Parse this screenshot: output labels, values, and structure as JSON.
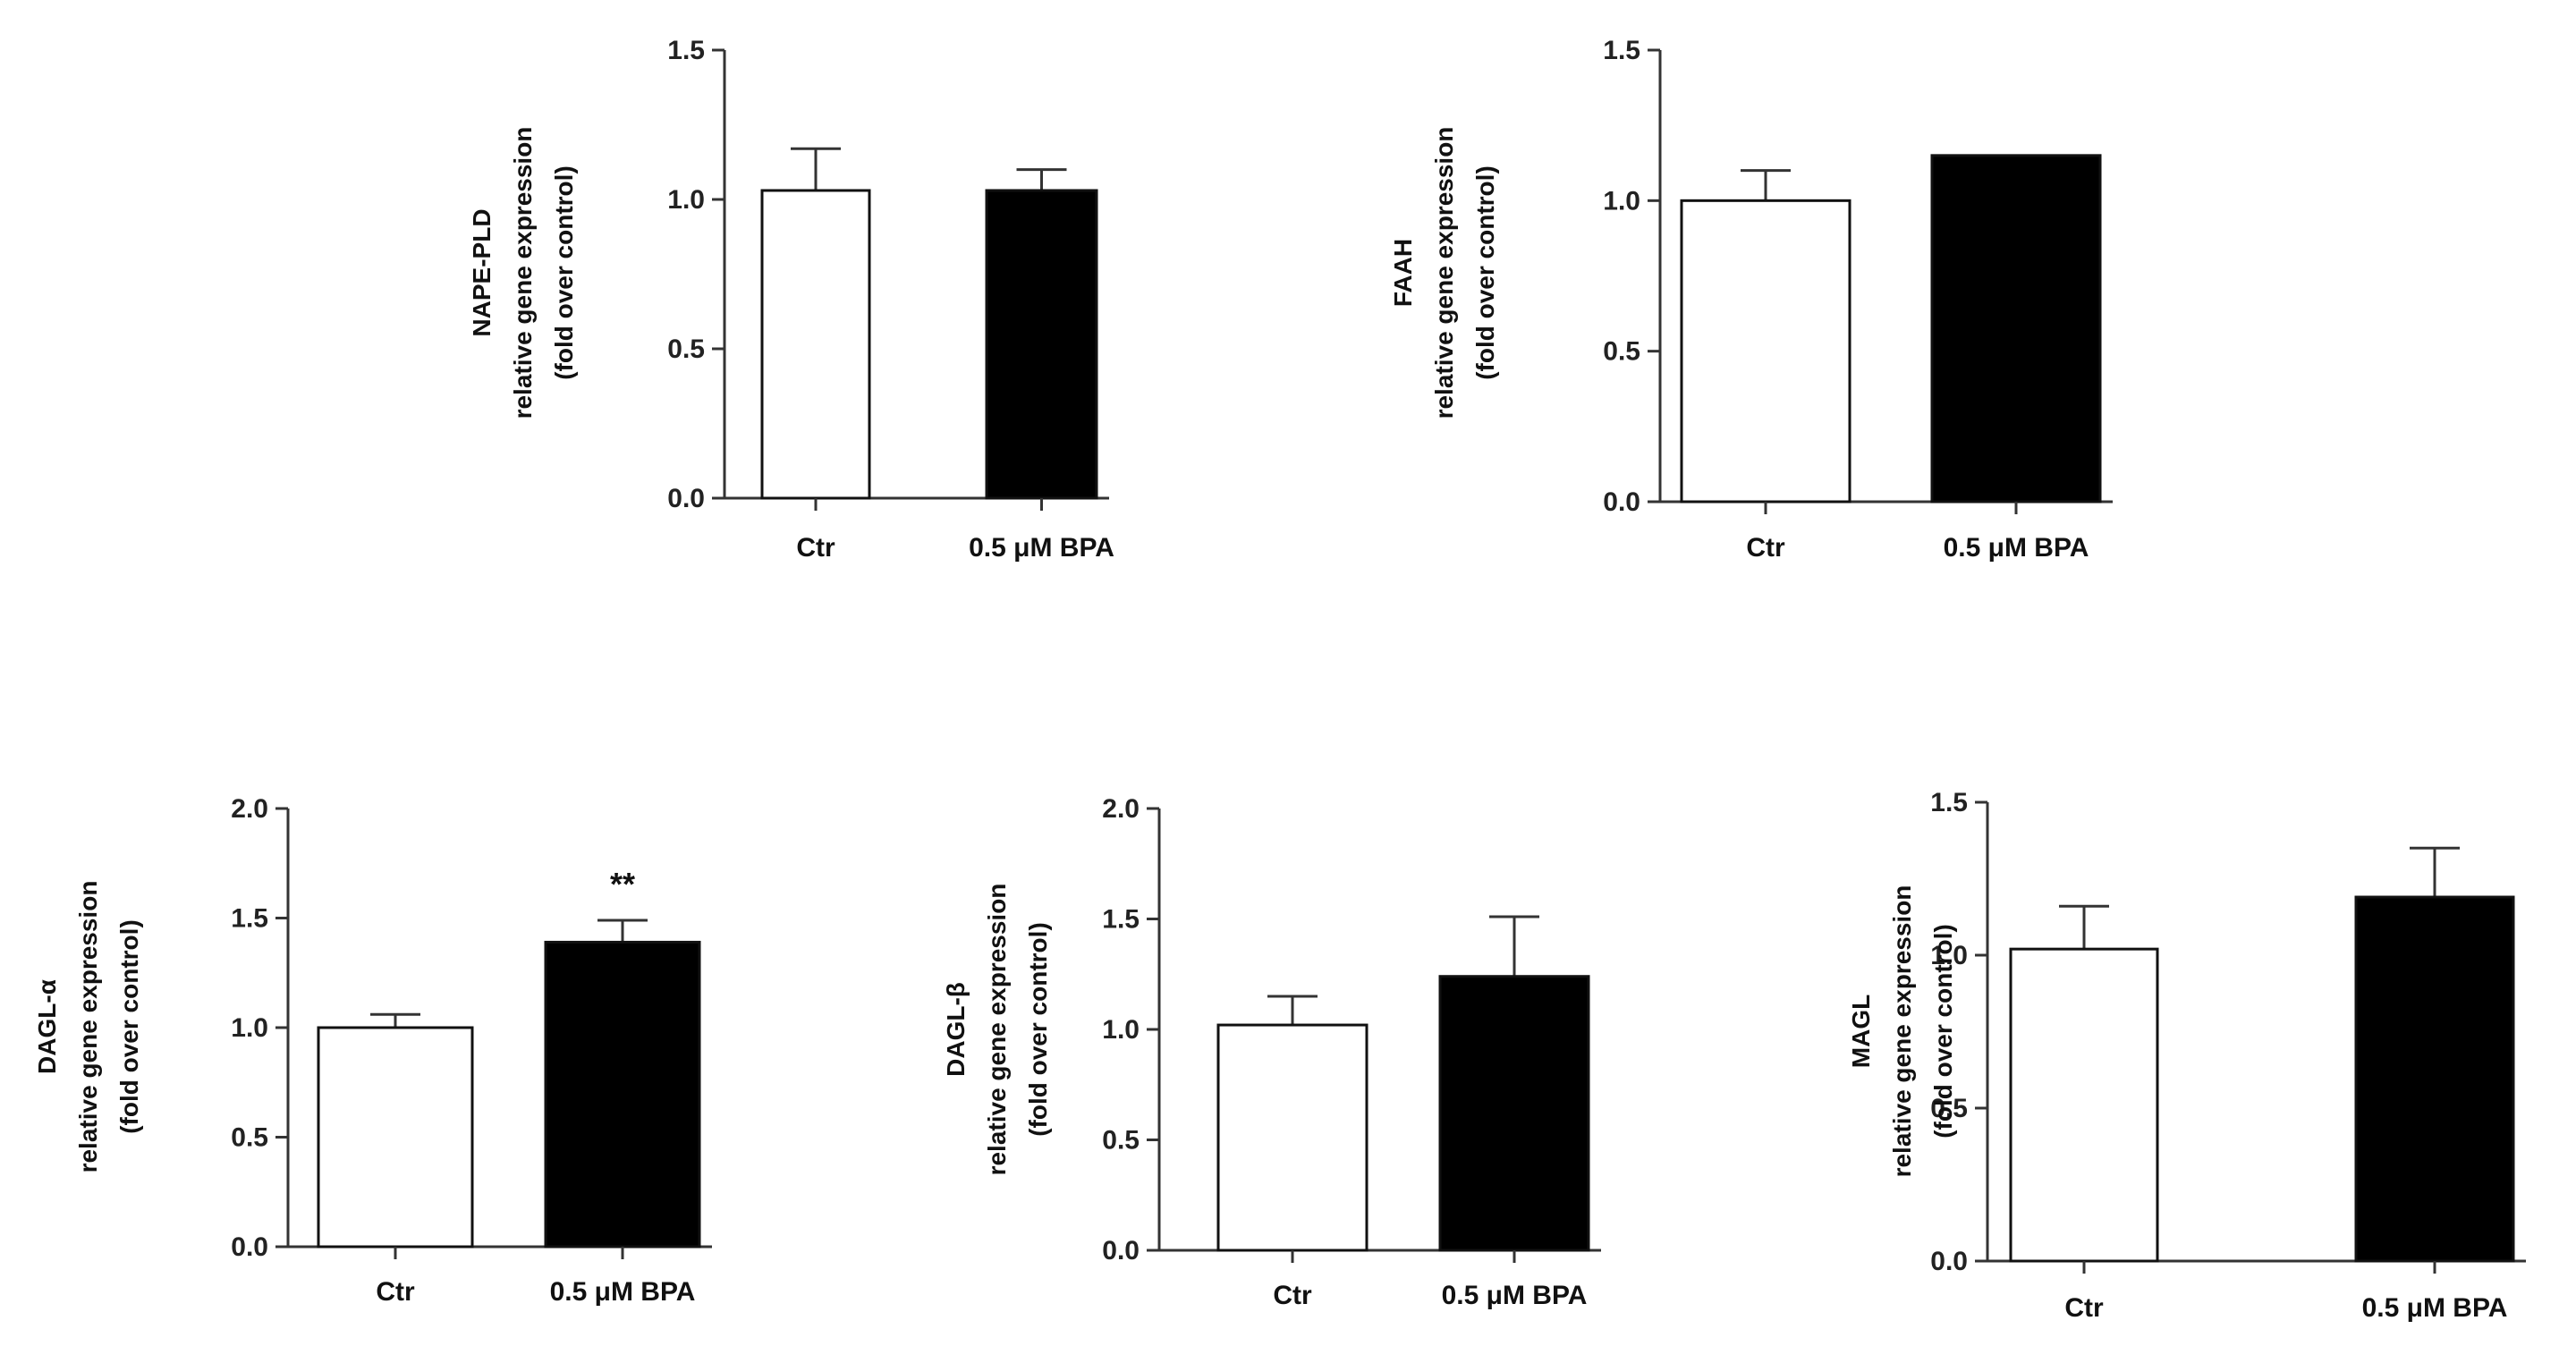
{
  "chart_data": [
    {
      "type": "bar",
      "categories": [
        "Ctr",
        "0.5 μM BPA"
      ],
      "values": [
        1.03,
        1.03
      ],
      "errors": [
        0.14,
        0.07
      ],
      "bar_fills": [
        "#ffffff",
        "#000000"
      ],
      "ylabel": [
        "NAPE-PLD",
        "relative gene expression",
        "(fold over control)"
      ],
      "ylim": [
        0,
        1.5
      ],
      "yticks": [
        "0.0",
        "0.5",
        "1.0",
        "1.5"
      ],
      "annotations": [
        "",
        ""
      ]
    },
    {
      "type": "bar",
      "categories": [
        "Ctr",
        "0.5 μM BPA"
      ],
      "values": [
        1.0,
        1.15
      ],
      "errors": [
        0.1,
        0.0
      ],
      "bar_fills": [
        "#ffffff",
        "#000000"
      ],
      "ylabel": [
        "FAAH",
        "relative gene expression",
        "(fold over control)"
      ],
      "ylim": [
        0,
        1.5
      ],
      "yticks": [
        "0.0",
        "0.5",
        "1.0",
        "1.5"
      ],
      "annotations": [
        "",
        ""
      ]
    },
    {
      "type": "bar",
      "categories": [
        "Ctr",
        "0.5 μM BPA"
      ],
      "values": [
        1.0,
        1.39
      ],
      "errors": [
        0.06,
        0.1
      ],
      "bar_fills": [
        "#ffffff",
        "#000000"
      ],
      "ylabel": [
        "DAGL-α",
        "relative gene expression",
        "(fold over control)"
      ],
      "ylim": [
        0,
        2.0
      ],
      "yticks": [
        "0.0",
        "0.5",
        "1.0",
        "1.5",
        "2.0"
      ],
      "annotations": [
        "",
        "**"
      ]
    },
    {
      "type": "bar",
      "categories": [
        "Ctr",
        "0.5 μM BPA"
      ],
      "values": [
        1.02,
        1.24
      ],
      "errors": [
        0.13,
        0.27
      ],
      "bar_fills": [
        "#ffffff",
        "#000000"
      ],
      "ylabel": [
        "DAGL-β",
        "relative gene expression",
        "(fold over control)"
      ],
      "ylim": [
        0,
        2.0
      ],
      "yticks": [
        "0.0",
        "0.5",
        "1.0",
        "1.5",
        "2.0"
      ],
      "annotations": [
        "",
        ""
      ]
    },
    {
      "type": "bar",
      "categories": [
        "Ctr",
        "0.5 μM BPA"
      ],
      "values": [
        1.02,
        1.19
      ],
      "errors": [
        0.14,
        0.16
      ],
      "bar_fills": [
        "#ffffff",
        "#000000"
      ],
      "ylabel": [
        "MAGL",
        "relative gene expression",
        "(fold over control)"
      ],
      "ylim": [
        0,
        1.5
      ],
      "yticks": [
        "0.0",
        "0.5",
        "1.0",
        "1.5"
      ],
      "annotations": [
        "",
        ""
      ]
    }
  ]
}
